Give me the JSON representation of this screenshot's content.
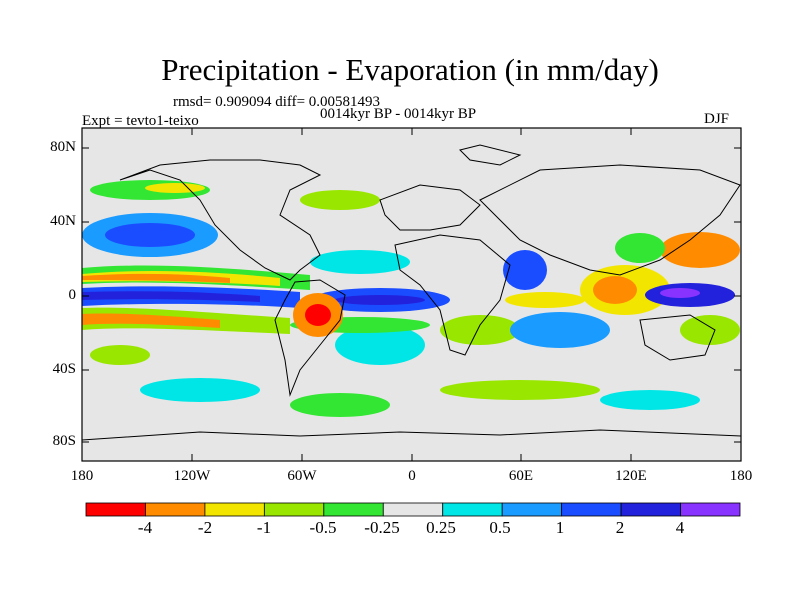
{
  "title": "Precipitation - Evaporation (in mm/day)",
  "stats_line": "rmsd= 0.909094 diff= 0.00581493",
  "expt_label": "Expt = tevto1-teixo",
  "period_label": "0014kyr BP - 0014kyr BP",
  "season_label": "DJF",
  "axes": {
    "lat_labels": [
      "80N",
      "40N",
      "0",
      "40S",
      "80S"
    ],
    "lon_labels": [
      "180",
      "120W",
      "60W",
      "0",
      "60E",
      "120E",
      "180"
    ]
  },
  "colorbar": {
    "labels": [
      "-4",
      "-2",
      "-1",
      "-0.5",
      "-0.25",
      "0.25",
      "0.5",
      "1",
      "2",
      "4"
    ],
    "colors": [
      "#ff0000",
      "#ff8c00",
      "#f2e600",
      "#99e600",
      "#33e633",
      "#e6e6e6",
      "#00e6e6",
      "#1a9bff",
      "#1a4dff",
      "#2222dd",
      "#8833ff"
    ]
  },
  "colors": {
    "background_map": "#e6e6e6",
    "coastline": "#000000"
  }
}
